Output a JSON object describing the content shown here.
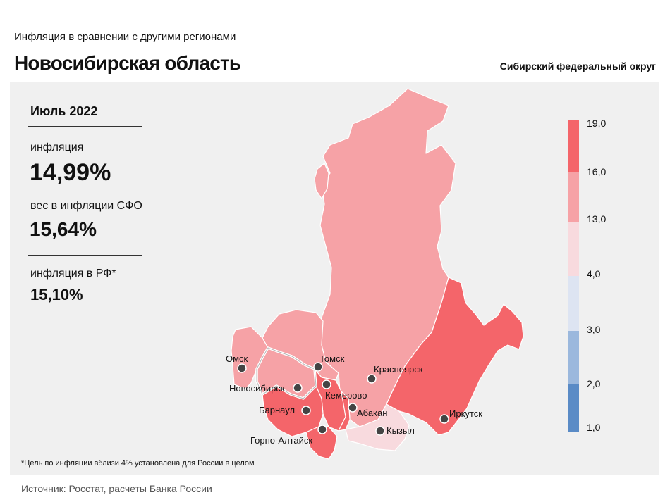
{
  "header": {
    "supertitle": "Инфляция  в сравнении  с другими  регионами",
    "title": "Новосибирская область",
    "district": "Сибирский федеральный округ"
  },
  "stats": {
    "period": "Июль 2022",
    "inflation_label": "инфляция",
    "inflation_value": "14,99%",
    "weight_label": "вес в инфляции  СФО",
    "weight_value": "15,64%",
    "rf_label": "инфляция  в РФ*",
    "rf_value": "15,10%"
  },
  "map": {
    "cities": [
      "Омск",
      "Томск",
      "Новосибирск",
      "Кемерово",
      "Красноярск",
      "Барнаул",
      "Абакан",
      "Кызыл",
      "Горно-Алтайск",
      "Иркутск"
    ],
    "highlighted_region": "Новосибирская область"
  },
  "legend": {
    "ticks": [
      "19,0",
      "16,0",
      "13,0",
      "4,0",
      "3,0",
      "2,0",
      "1,0"
    ],
    "colors": [
      "#f4656a",
      "#f6a2a6",
      "#f8dade",
      "#dde4f2",
      "#9bb8dd",
      "#5a8bc6"
    ]
  },
  "colors": {
    "high": "#f4656a",
    "mid": "#f6a2a6",
    "low": "#f8dade",
    "panel_bg": "#f0f0f0"
  },
  "footnote": "*Цель по инфляции вблизи 4% установлена для России в целом",
  "source": "Источник: Росстат, расчеты Банка России"
}
